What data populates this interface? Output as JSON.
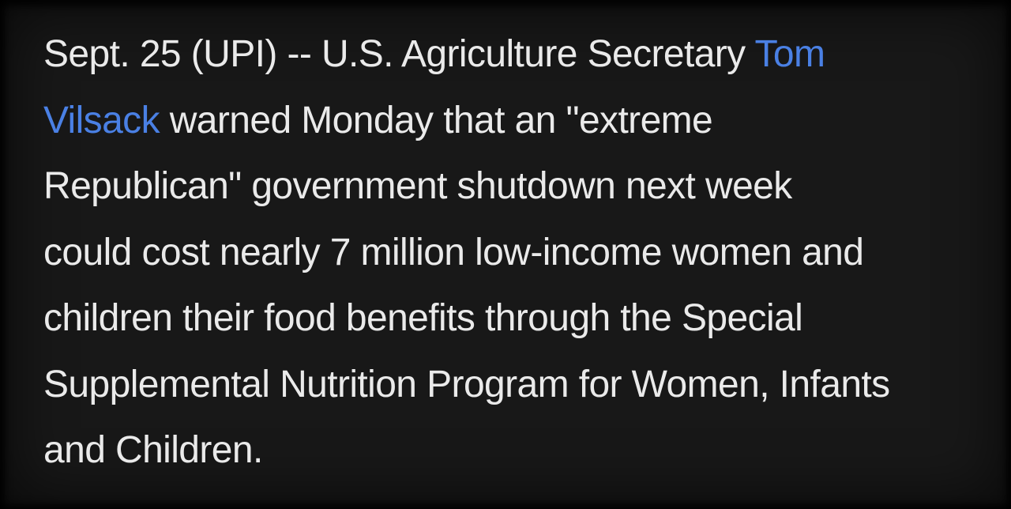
{
  "page": {
    "background_color": "#181818",
    "text_color": "#eaeaea",
    "link_color": "#4a80e4",
    "link_text_full": "Tom Vilsack"
  },
  "article": {
    "lines": [
      {
        "segments": [
          {
            "text": "Sept. 25 (UPI) -- U.S. Agriculture Secretary "
          },
          {
            "text": "Tom",
            "type": "link"
          }
        ]
      },
      {
        "segments": [
          {
            "text": "Vilsack",
            "type": "link"
          },
          {
            "text": " warned Monday that an \"extreme"
          }
        ]
      },
      {
        "segments": [
          {
            "text": "Republican\" government shutdown next week"
          }
        ]
      },
      {
        "segments": [
          {
            "text": "could cost nearly 7 million low-income women and"
          }
        ]
      },
      {
        "segments": [
          {
            "text": "children their food benefits through the Special"
          }
        ]
      },
      {
        "segments": [
          {
            "text": "Supplemental Nutrition Program for Women, Infants"
          }
        ]
      },
      {
        "segments": [
          {
            "text": "and Children."
          }
        ]
      }
    ]
  }
}
